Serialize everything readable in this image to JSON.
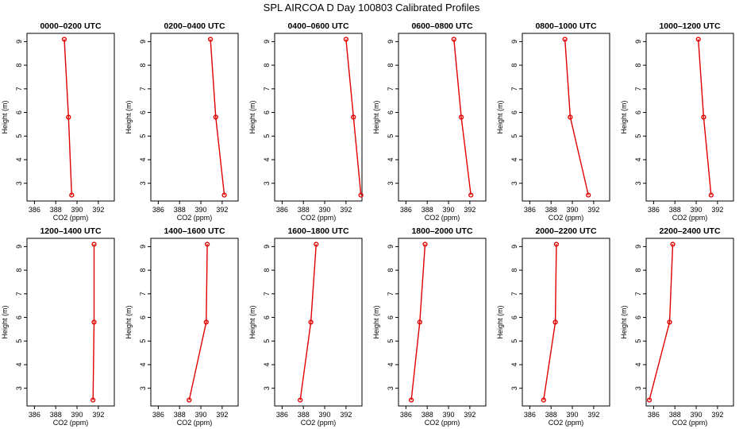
{
  "title": "SPL AIRCOA D  Day 100803  Calibrated Profiles",
  "colors": {
    "series": "#e00000",
    "axes": "#000000",
    "background": "#ffffff"
  },
  "chart_data": [
    {
      "type": "line",
      "title": "0000–0200 UTC",
      "xlabel": "CO2 (ppm)",
      "ylabel": "Height (m)",
      "xlim": [
        385.3,
        393.5
      ],
      "ylim": [
        2.25,
        9.35
      ],
      "xticks": [
        "386",
        "388",
        "390",
        "392"
      ],
      "yticks": [
        "3",
        "4",
        "5",
        "6",
        "7",
        "8",
        "9"
      ],
      "x": [
        388.8,
        389.2,
        389.5
      ],
      "y": [
        9.1,
        5.8,
        2.5
      ]
    },
    {
      "type": "line",
      "title": "0200–0400 UTC",
      "xlabel": "CO2 (ppm)",
      "ylabel": "Height (m)",
      "xlim": [
        385.3,
        393.5
      ],
      "ylim": [
        2.25,
        9.35
      ],
      "xticks": [
        "386",
        "388",
        "390",
        "392"
      ],
      "yticks": [
        "3",
        "4",
        "5",
        "6",
        "7",
        "8",
        "9"
      ],
      "x": [
        390.9,
        391.4,
        392.2
      ],
      "y": [
        9.1,
        5.8,
        2.5
      ]
    },
    {
      "type": "line",
      "title": "0400–0600 UTC",
      "xlabel": "CO2 (ppm)",
      "ylabel": "Height (m)",
      "xlim": [
        385.3,
        393.5
      ],
      "ylim": [
        2.25,
        9.35
      ],
      "xticks": [
        "386",
        "388",
        "390",
        "392"
      ],
      "yticks": [
        "3",
        "4",
        "5",
        "6",
        "7",
        "8",
        "9"
      ],
      "x": [
        392.0,
        392.7,
        393.4
      ],
      "y": [
        9.1,
        5.8,
        2.5
      ]
    },
    {
      "type": "line",
      "title": "0600–0800 UTC",
      "xlabel": "CO2 (ppm)",
      "ylabel": "Height (m)",
      "xlim": [
        385.3,
        393.5
      ],
      "ylim": [
        2.25,
        9.35
      ],
      "xticks": [
        "386",
        "388",
        "390",
        "392"
      ],
      "yticks": [
        "3",
        "4",
        "5",
        "6",
        "7",
        "8",
        "9"
      ],
      "x": [
        390.5,
        391.2,
        392.1
      ],
      "y": [
        9.1,
        5.8,
        2.5
      ]
    },
    {
      "type": "line",
      "title": "0800–1000 UTC",
      "xlabel": "CO2 (ppm)",
      "ylabel": "Height (m)",
      "xlim": [
        385.3,
        393.5
      ],
      "ylim": [
        2.25,
        9.35
      ],
      "xticks": [
        "386",
        "388",
        "390",
        "392"
      ],
      "yticks": [
        "3",
        "4",
        "5",
        "6",
        "7",
        "8",
        "9"
      ],
      "x": [
        389.3,
        389.8,
        391.5
      ],
      "y": [
        9.1,
        5.8,
        2.5
      ]
    },
    {
      "type": "line",
      "title": "1000–1200 UTC",
      "xlabel": "CO2 (ppm)",
      "ylabel": "Height (m)",
      "xlim": [
        385.3,
        393.5
      ],
      "ylim": [
        2.25,
        9.35
      ],
      "xticks": [
        "386",
        "388",
        "390",
        "392"
      ],
      "yticks": [
        "3",
        "4",
        "5",
        "6",
        "7",
        "8",
        "9"
      ],
      "x": [
        390.2,
        390.7,
        391.4
      ],
      "y": [
        9.1,
        5.8,
        2.5
      ]
    },
    {
      "type": "line",
      "title": "1200–1400 UTC",
      "xlabel": "CO2 (ppm)",
      "ylabel": "Height (m)",
      "xlim": [
        385.3,
        393.5
      ],
      "ylim": [
        2.25,
        9.35
      ],
      "xticks": [
        "386",
        "388",
        "390",
        "392"
      ],
      "yticks": [
        "3",
        "4",
        "5",
        "6",
        "7",
        "8",
        "9"
      ],
      "x": [
        391.6,
        391.6,
        391.5
      ],
      "y": [
        9.1,
        5.8,
        2.5
      ]
    },
    {
      "type": "line",
      "title": "1400–1600 UTC",
      "xlabel": "CO2 (ppm)",
      "ylabel": "Height (m)",
      "xlim": [
        385.3,
        393.5
      ],
      "ylim": [
        2.25,
        9.35
      ],
      "xticks": [
        "386",
        "388",
        "390",
        "392"
      ],
      "yticks": [
        "3",
        "4",
        "5",
        "6",
        "7",
        "8",
        "9"
      ],
      "x": [
        390.6,
        390.5,
        388.9
      ],
      "y": [
        9.1,
        5.8,
        2.5
      ]
    },
    {
      "type": "line",
      "title": "1600–1800 UTC",
      "xlabel": "CO2 (ppm)",
      "ylabel": "Height (m)",
      "xlim": [
        385.3,
        393.5
      ],
      "ylim": [
        2.25,
        9.35
      ],
      "xticks": [
        "386",
        "388",
        "390",
        "392"
      ],
      "yticks": [
        "3",
        "4",
        "5",
        "6",
        "7",
        "8",
        "9"
      ],
      "x": [
        389.2,
        388.7,
        387.7
      ],
      "y": [
        9.1,
        5.8,
        2.5
      ]
    },
    {
      "type": "line",
      "title": "1800–2000 UTC",
      "xlabel": "CO2 (ppm)",
      "ylabel": "Height (m)",
      "xlim": [
        385.3,
        393.5
      ],
      "ylim": [
        2.25,
        9.35
      ],
      "xticks": [
        "386",
        "388",
        "390",
        "392"
      ],
      "yticks": [
        "3",
        "4",
        "5",
        "6",
        "7",
        "8",
        "9"
      ],
      "x": [
        387.8,
        387.3,
        386.5
      ],
      "y": [
        9.1,
        5.8,
        2.5
      ]
    },
    {
      "type": "line",
      "title": "2000–2200 UTC",
      "xlabel": "CO2 (ppm)",
      "ylabel": "Height (m)",
      "xlim": [
        385.3,
        393.5
      ],
      "ylim": [
        2.25,
        9.35
      ],
      "xticks": [
        "386",
        "388",
        "390",
        "392"
      ],
      "yticks": [
        "3",
        "4",
        "5",
        "6",
        "7",
        "8",
        "9"
      ],
      "x": [
        388.5,
        388.4,
        387.3
      ],
      "y": [
        9.1,
        5.8,
        2.5
      ]
    },
    {
      "type": "line",
      "title": "2200–2400 UTC",
      "xlabel": "CO2 (ppm)",
      "ylabel": "Height (m)",
      "xlim": [
        385.3,
        393.5
      ],
      "ylim": [
        2.25,
        9.35
      ],
      "xticks": [
        "386",
        "388",
        "390",
        "392"
      ],
      "yticks": [
        "3",
        "4",
        "5",
        "6",
        "7",
        "8",
        "9"
      ],
      "x": [
        387.8,
        387.5,
        385.6
      ],
      "y": [
        9.1,
        5.8,
        2.5
      ]
    }
  ]
}
